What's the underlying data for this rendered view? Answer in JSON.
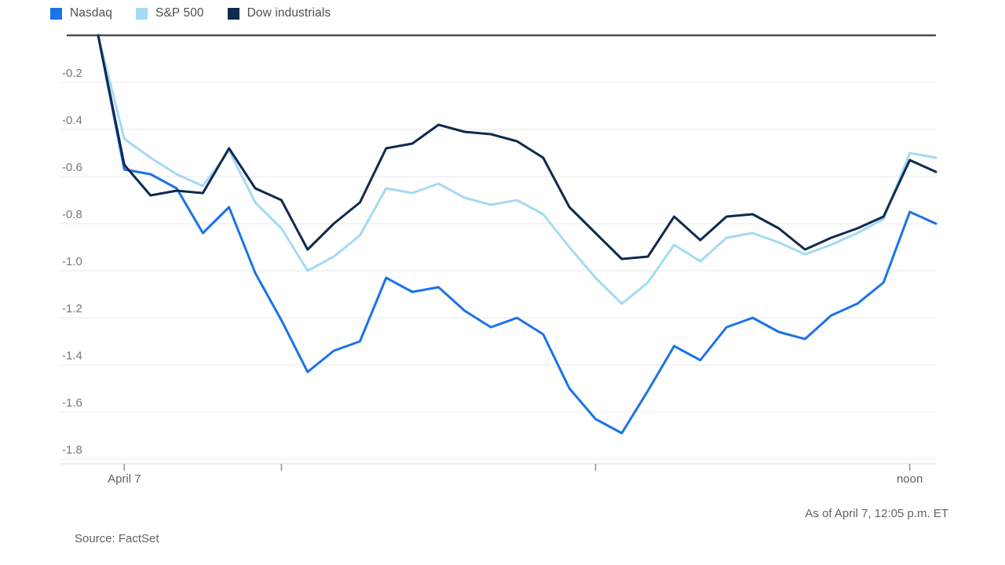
{
  "legend": {
    "items": [
      {
        "label": "Nasdaq",
        "color": "#1a73e8"
      },
      {
        "label": "S&P 500",
        "color": "#a3daf5"
      },
      {
        "label": "Dow industrials",
        "color": "#0f2a4f"
      }
    ]
  },
  "footer": {
    "as_of": "As of April 7, 12:05 p.m. ET",
    "source": "Source: FactSet"
  },
  "chart_data": {
    "type": "line",
    "title": "",
    "xlabel": "",
    "ylabel": "",
    "unit": "percent change",
    "grid": "horizontal",
    "legend_position": "top-left",
    "ylim": [
      -1.9,
      0
    ],
    "yticks": [
      -0.2,
      -0.4,
      -0.6,
      -0.8,
      -1.0,
      -1.2,
      -1.4,
      -1.6,
      -1.8
    ],
    "x": [
      "9:25",
      "9:30",
      "9:35",
      "9:40",
      "9:45",
      "9:50",
      "9:55",
      "10:00",
      "10:05",
      "10:10",
      "10:15",
      "10:20",
      "10:25",
      "10:30",
      "10:35",
      "10:40",
      "10:45",
      "10:50",
      "10:55",
      "11:00",
      "11:05",
      "11:10",
      "11:15",
      "11:20",
      "11:25",
      "11:30",
      "11:35",
      "11:40",
      "11:45",
      "11:50",
      "11:55",
      "12:00",
      "12:05"
    ],
    "x_axis_ticks": [
      {
        "index": 1,
        "time": "9:30",
        "label": "April 7"
      },
      {
        "index": 7,
        "time": "10:00",
        "label": ""
      },
      {
        "index": 19,
        "time": "11:00",
        "label": ""
      },
      {
        "index": 31,
        "time": "12:00",
        "label": "noon"
      }
    ],
    "series": [
      {
        "name": "Nasdaq",
        "color": "#1a73e8",
        "values": [
          0,
          -0.57,
          -0.59,
          -0.65,
          -0.84,
          -0.73,
          -1.01,
          -1.21,
          -1.43,
          -1.34,
          -1.3,
          -1.03,
          -1.09,
          -1.07,
          -1.17,
          -1.24,
          -1.2,
          -1.27,
          -1.5,
          -1.63,
          -1.69,
          -1.51,
          -1.32,
          -1.38,
          -1.24,
          -1.2,
          -1.26,
          -1.29,
          -1.19,
          -1.14,
          -1.05,
          -0.75,
          -0.8
        ]
      },
      {
        "name": "S&P 500",
        "color": "#a3daf5",
        "values": [
          0,
          -0.44,
          -0.52,
          -0.59,
          -0.64,
          -0.49,
          -0.71,
          -0.82,
          -1.0,
          -0.94,
          -0.85,
          -0.65,
          -0.67,
          -0.63,
          -0.69,
          -0.72,
          -0.7,
          -0.76,
          -0.9,
          -1.03,
          -1.14,
          -1.05,
          -0.89,
          -0.96,
          -0.86,
          -0.84,
          -0.88,
          -0.93,
          -0.89,
          -0.84,
          -0.78,
          -0.5,
          -0.52
        ]
      },
      {
        "name": "Dow industrials",
        "color": "#0f2a4f",
        "values": [
          0,
          -0.55,
          -0.68,
          -0.66,
          -0.67,
          -0.48,
          -0.65,
          -0.7,
          -0.91,
          -0.8,
          -0.71,
          -0.48,
          -0.46,
          -0.38,
          -0.41,
          -0.42,
          -0.45,
          -0.52,
          -0.73,
          -0.84,
          -0.95,
          -0.94,
          -0.77,
          -0.87,
          -0.77,
          -0.76,
          -0.82,
          -0.91,
          -0.86,
          -0.82,
          -0.77,
          -0.53,
          -0.58
        ]
      }
    ]
  }
}
